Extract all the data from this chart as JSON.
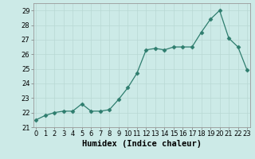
{
  "x": [
    0,
    1,
    2,
    3,
    4,
    5,
    6,
    7,
    8,
    9,
    10,
    11,
    12,
    13,
    14,
    15,
    16,
    17,
    18,
    19,
    20,
    21,
    22,
    23
  ],
  "y": [
    21.5,
    21.8,
    22.0,
    22.1,
    22.1,
    22.6,
    22.1,
    22.1,
    22.2,
    22.9,
    23.7,
    24.7,
    26.3,
    26.4,
    26.3,
    26.5,
    26.5,
    26.5,
    27.5,
    28.4,
    29.0,
    27.1,
    26.5,
    24.9
  ],
  "xlabel": "Humidex (Indice chaleur)",
  "ylim_min": 21,
  "ylim_max": 29.5,
  "xlim_min": -0.3,
  "xlim_max": 23.3,
  "yticks": [
    21,
    22,
    23,
    24,
    25,
    26,
    27,
    28,
    29
  ],
  "xticks": [
    0,
    1,
    2,
    3,
    4,
    5,
    6,
    7,
    8,
    9,
    10,
    11,
    12,
    13,
    14,
    15,
    16,
    17,
    18,
    19,
    20,
    21,
    22,
    23
  ],
  "line_color": "#2e7d6e",
  "marker": "D",
  "marker_size": 2.5,
  "bg_color": "#cceae7",
  "grid_color": "#b8d8d4",
  "tick_label_fontsize": 6,
  "xlabel_fontsize": 7.5,
  "linewidth": 0.9
}
